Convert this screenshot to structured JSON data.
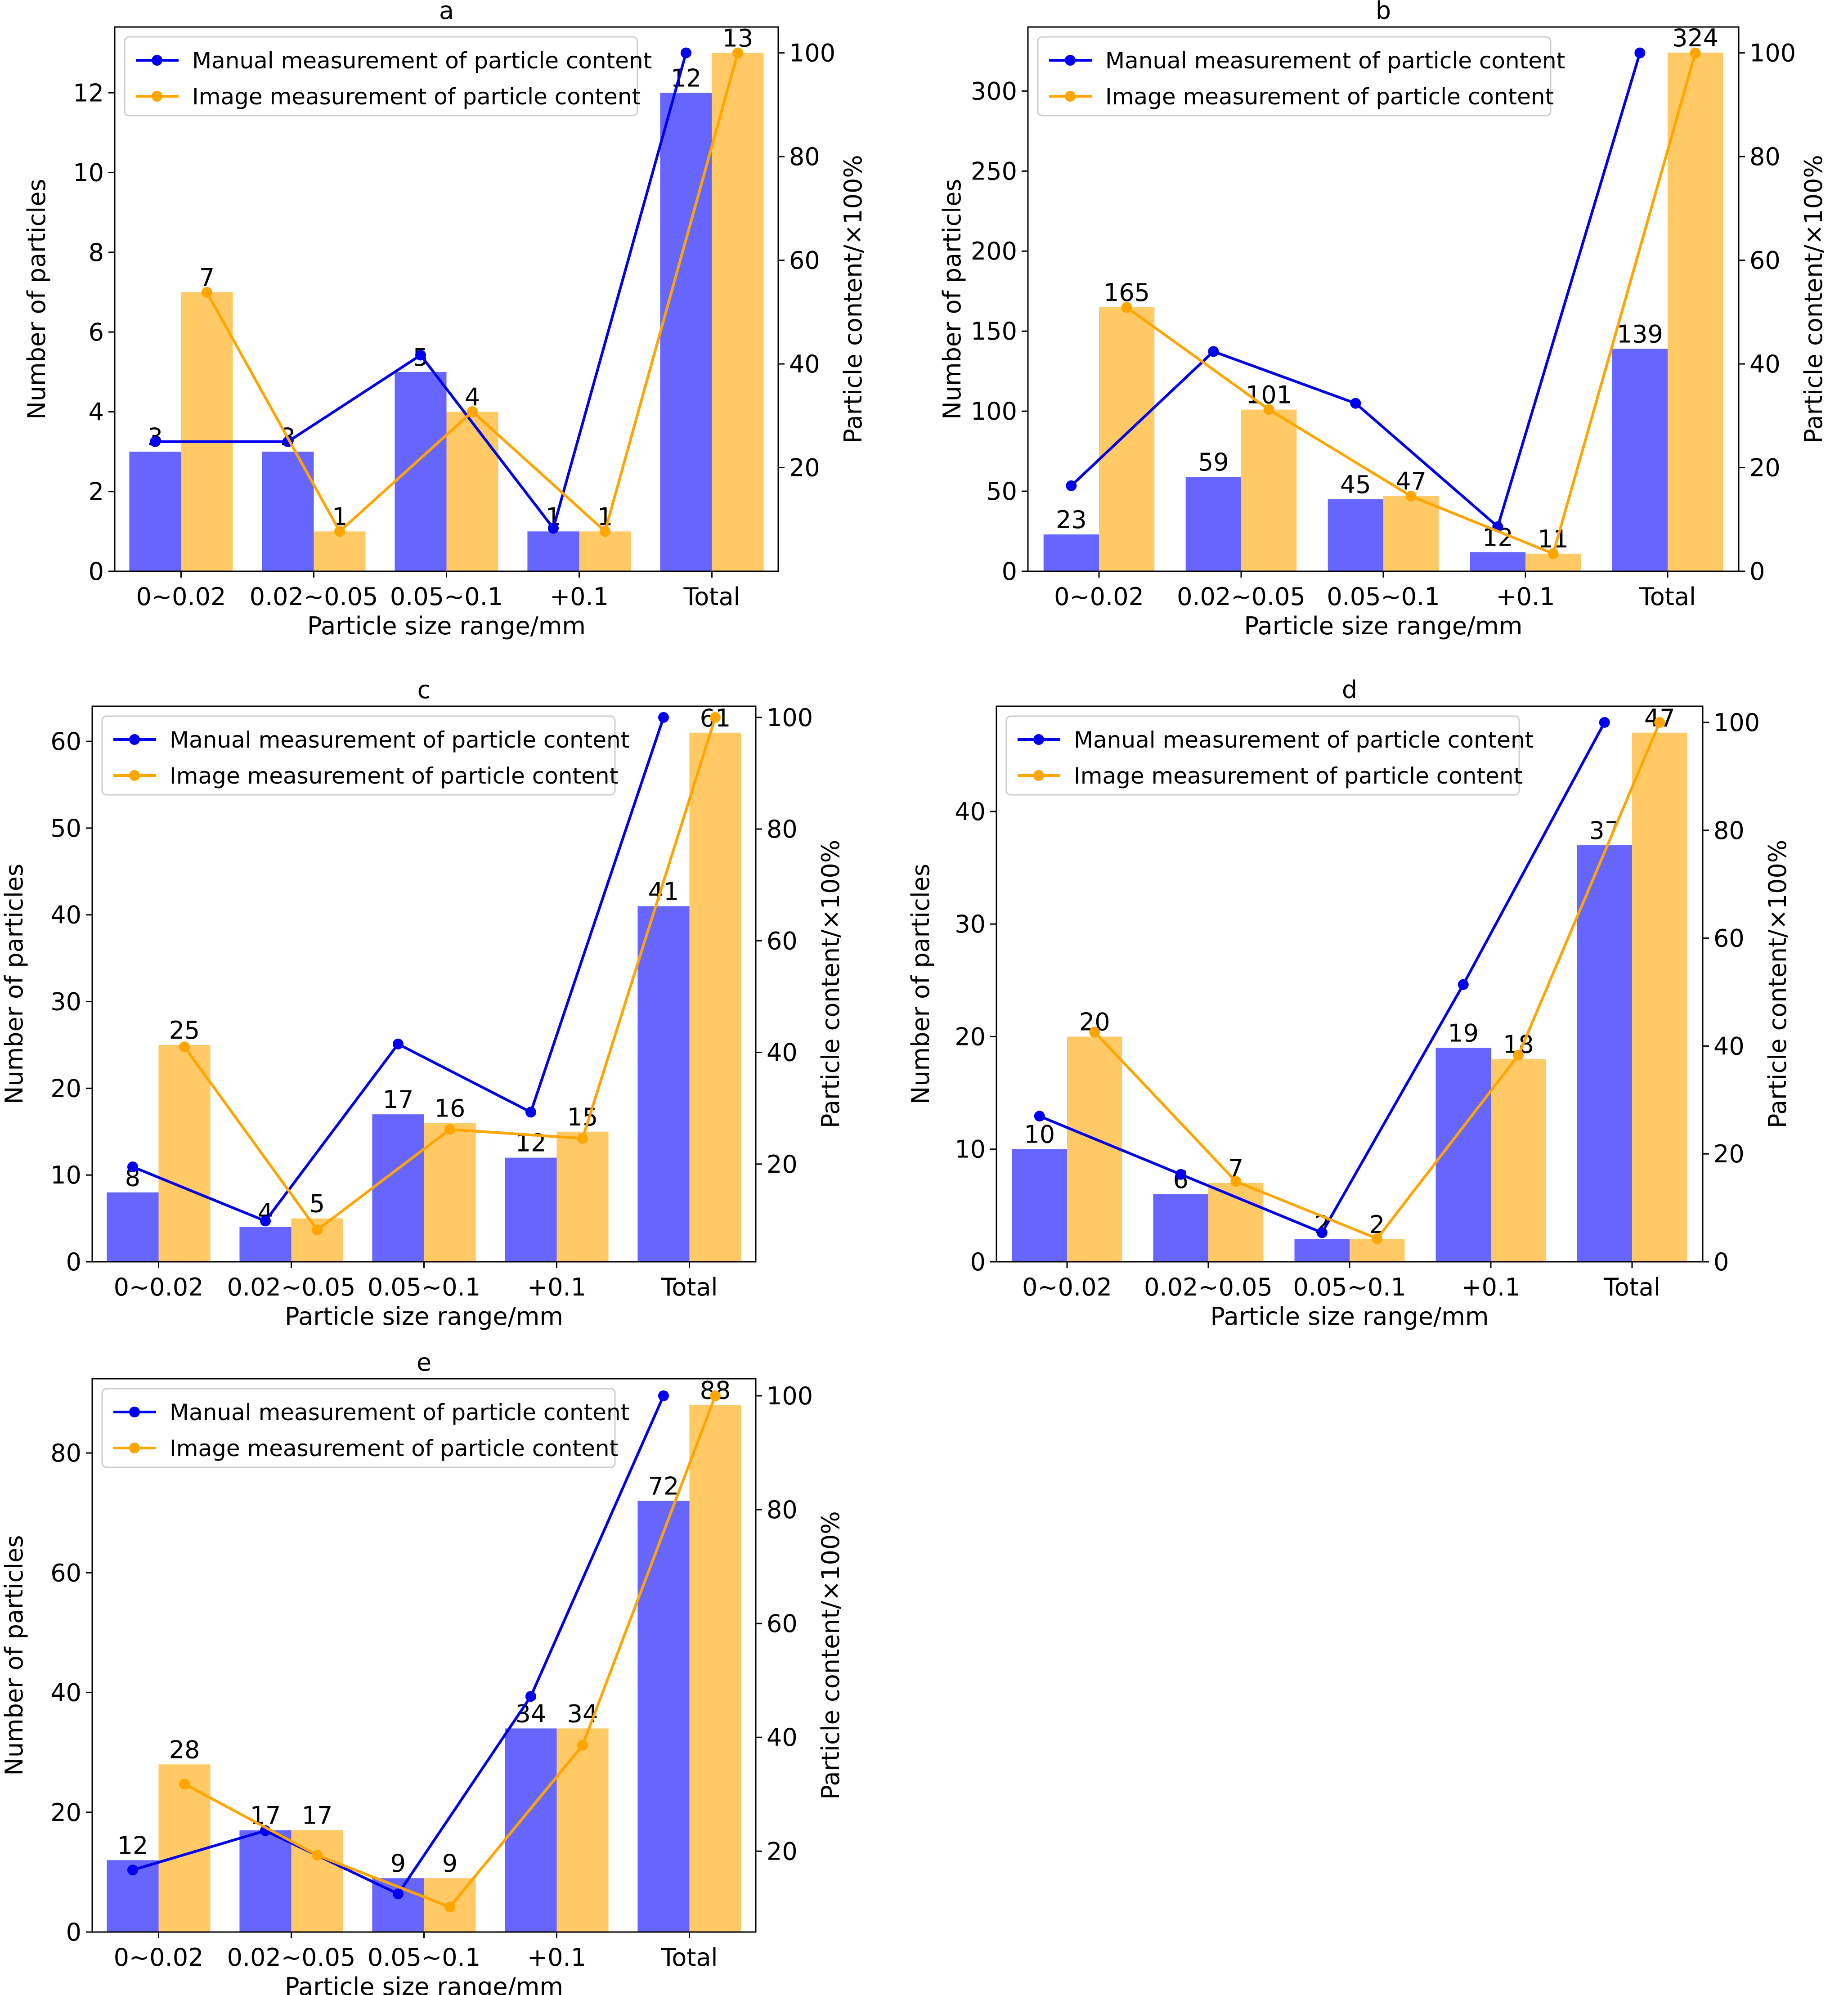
{
  "chart_data": [
    {
      "type": "bar",
      "title": "a",
      "xlabel": "Particle size range/mm",
      "ylabel": "Number of particles",
      "y2label": "Particle content/×100%",
      "categories": [
        "0~0.02",
        "0.02~0.05",
        "0.05~0.1",
        "+0.1",
        "Total"
      ],
      "series": [
        {
          "name": "Manual",
          "values": [
            3,
            3,
            5,
            1,
            12
          ],
          "labels": [
            "3",
            "3",
            "5",
            "1",
            "12"
          ],
          "color": "#6666ff"
        },
        {
          "name": "Image",
          "values": [
            7,
            1,
            4,
            1,
            13
          ],
          "labels": [
            "7",
            "1",
            "4",
            "1",
            "13"
          ],
          "color": "#ffc966"
        }
      ],
      "lines": [
        {
          "name": "Manual measurement of particle content",
          "values": [
            25,
            25,
            41.7,
            8.3,
            100
          ],
          "color": "#0000ee"
        },
        {
          "name": "Image measurement of particle content",
          "values": [
            53.8,
            7.7,
            30.8,
            7.7,
            100
          ],
          "color": "#ffa500"
        }
      ],
      "ylim": [
        0,
        13.65
      ],
      "yticks": [
        0,
        2,
        4,
        6,
        8,
        10,
        12
      ],
      "y2lim": [
        0,
        105
      ],
      "y2ticks": [
        20,
        40,
        60,
        80,
        100
      ],
      "legend": "top-left",
      "grid": false
    },
    {
      "type": "bar",
      "title": "b",
      "xlabel": "Particle size range/mm",
      "ylabel": "Number of particles",
      "y2label": "Particle content/×100%",
      "categories": [
        "0~0.02",
        "0.02~0.05",
        "0.05~0.1",
        "+0.1",
        "Total"
      ],
      "series": [
        {
          "name": "Manual",
          "values": [
            23,
            59,
            45,
            12,
            139
          ],
          "labels": [
            "23",
            "59",
            "45",
            "12",
            "139"
          ],
          "color": "#6666ff"
        },
        {
          "name": "Image",
          "values": [
            165,
            101,
            47,
            11,
            324
          ],
          "labels": [
            "165",
            "101",
            "47",
            "11",
            "324"
          ],
          "color": "#ffc966"
        }
      ],
      "lines": [
        {
          "name": "Manual measurement of particle content",
          "values": [
            16.5,
            42.4,
            32.4,
            8.6,
            100
          ],
          "color": "#0000ee"
        },
        {
          "name": "Image measurement of particle content",
          "values": [
            50.9,
            31.2,
            14.5,
            3.4,
            100
          ],
          "color": "#ffa500"
        }
      ],
      "ylim": [
        0,
        340
      ],
      "yticks": [
        0,
        50,
        100,
        150,
        200,
        250,
        300
      ],
      "y2lim": [
        0,
        105
      ],
      "y2ticks": [
        0,
        20,
        40,
        60,
        80,
        100
      ],
      "legend": "top-left",
      "grid": false
    },
    {
      "type": "bar",
      "title": "c",
      "xlabel": "Particle size range/mm",
      "ylabel": "Number of particles",
      "y2label": "Particle content/×100%",
      "categories": [
        "0~0.02",
        "0.02~0.05",
        "0.05~0.1",
        "+0.1",
        "Total"
      ],
      "series": [
        {
          "name": "Manual",
          "values": [
            8,
            4,
            17,
            12,
            41
          ],
          "labels": [
            "8",
            "4",
            "17",
            "12",
            "41"
          ],
          "color": "#6666ff"
        },
        {
          "name": "Image",
          "values": [
            25,
            5,
            16,
            15,
            61
          ],
          "labels": [
            "25",
            "5",
            "16",
            "15",
            "61"
          ],
          "color": "#ffc966"
        }
      ],
      "lines": [
        {
          "name": "Manual measurement of particle content",
          "values": [
            19.5,
            9.8,
            41.5,
            29.3,
            100
          ],
          "color": "#0000ee"
        },
        {
          "name": "Image measurement of particle content",
          "values": [
            41,
            8.2,
            26.2,
            24.6,
            100
          ],
          "color": "#ffa500"
        }
      ],
      "ylim": [
        0,
        64.05
      ],
      "yticks": [
        0,
        10,
        20,
        30,
        40,
        50,
        60
      ],
      "y2lim": [
        2.5,
        102
      ],
      "y2ticks": [
        20,
        40,
        60,
        80,
        100
      ],
      "legend": "top-left",
      "grid": false
    },
    {
      "type": "bar",
      "title": "d",
      "xlabel": "Particle size range/mm",
      "ylabel": "Number of particles",
      "y2label": "Particle content/×100%",
      "categories": [
        "0~0.02",
        "0.02~0.05",
        "0.05~0.1",
        "+0.1",
        "Total"
      ],
      "series": [
        {
          "name": "Manual",
          "values": [
            10,
            6,
            2,
            19,
            37
          ],
          "labels": [
            "10",
            "6",
            "2",
            "19",
            "37"
          ],
          "color": "#6666ff"
        },
        {
          "name": "Image",
          "values": [
            20,
            7,
            2,
            18,
            47
          ],
          "labels": [
            "20",
            "7",
            "2",
            "18",
            "47"
          ],
          "color": "#ffc966"
        }
      ],
      "lines": [
        {
          "name": "Manual measurement of particle content",
          "values": [
            27,
            16.2,
            5.4,
            51.4,
            100
          ],
          "color": "#0000ee"
        },
        {
          "name": "Image measurement of particle content",
          "values": [
            42.6,
            14.9,
            4.3,
            38.3,
            100
          ],
          "color": "#ffa500"
        }
      ],
      "ylim": [
        0,
        49.35
      ],
      "yticks": [
        0,
        10,
        20,
        30,
        40
      ],
      "y2lim": [
        0,
        103
      ],
      "y2ticks": [
        0,
        20,
        40,
        60,
        80,
        100
      ],
      "legend": "top-left",
      "grid": false
    },
    {
      "type": "bar",
      "title": "e",
      "xlabel": "Particle size range/mm",
      "ylabel": "Number of particles",
      "y2label": "Particle content/×100%",
      "categories": [
        "0~0.02",
        "0.02~0.05",
        "0.05~0.1",
        "+0.1",
        "Total"
      ],
      "series": [
        {
          "name": "Manual",
          "values": [
            12,
            17,
            9,
            34,
            72
          ],
          "labels": [
            "12",
            "17",
            "9",
            "34",
            "72"
          ],
          "color": "#6666ff"
        },
        {
          "name": "Image",
          "values": [
            28,
            17,
            9,
            34,
            88
          ],
          "labels": [
            "28",
            "17",
            "9",
            "34",
            "88"
          ],
          "color": "#ffc966"
        }
      ],
      "lines": [
        {
          "name": "Manual measurement of particle content",
          "values": [
            16.7,
            23.6,
            12.5,
            47.2,
            100
          ],
          "color": "#0000ee"
        },
        {
          "name": "Image measurement of particle content",
          "values": [
            31.8,
            19.3,
            10.2,
            38.6,
            100
          ],
          "color": "#ffa500"
        }
      ],
      "ylim": [
        0,
        92.4
      ],
      "yticks": [
        0,
        20,
        40,
        60,
        80
      ],
      "y2lim": [
        5.8,
        103
      ],
      "y2ticks": [
        20,
        40,
        60,
        80,
        100
      ],
      "legend": "top-left",
      "grid": false
    }
  ]
}
